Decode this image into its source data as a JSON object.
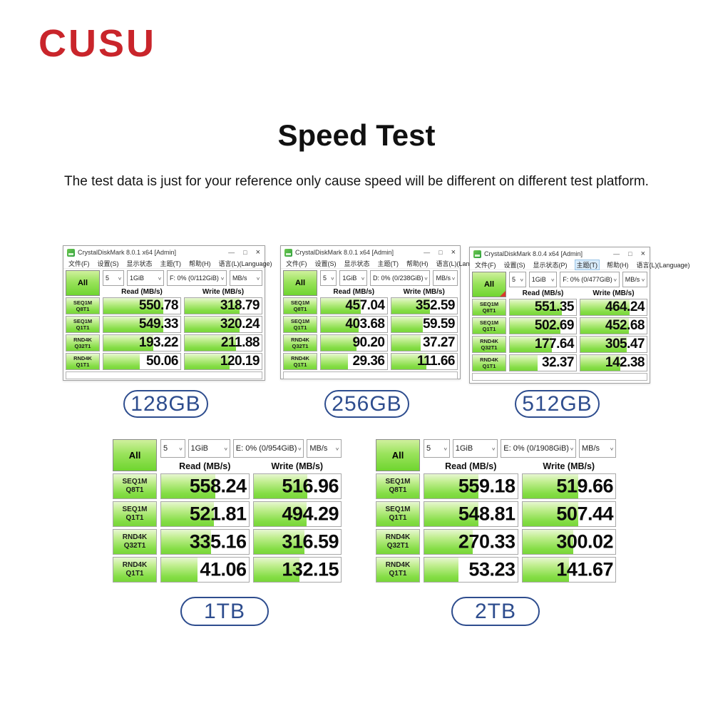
{
  "colors": {
    "brand_red": "#c9252b",
    "pill_blue": "#2e4d8e",
    "bar_green": "#79d63a",
    "bar_green_light": "#e7f7d2"
  },
  "header": {
    "brand": "CUSU",
    "title": "Speed Test",
    "subtitle": "The test data is just for your reference only cause speed will be different on different test platform."
  },
  "windows": [
    {
      "capacity_label": "128GB",
      "chrome": {
        "title": "CrystalDiskMark 8.0.1 x64 [Admin]",
        "minimize": "—",
        "maximize": "□",
        "close": "×"
      },
      "menu": [
        {
          "label": "文件(F)"
        },
        {
          "label": "设置(S)"
        },
        {
          "label": "显示状态"
        },
        {
          "label": "主题(T)"
        },
        {
          "label": "帮助(H)"
        },
        {
          "label": "语言(L)(Language)"
        }
      ],
      "all_label": "All",
      "controls": {
        "count": "5",
        "size": "1GiB",
        "target": "F: 0% (0/112GiB)",
        "unit": "MB/s"
      },
      "read_header": "Read (MB/s)",
      "write_header": "Write (MB/s)",
      "has_footer": true,
      "all_marker": false,
      "rows": [
        {
          "test": "SEQ1M",
          "queue": "Q8T1",
          "read": "550.78",
          "write": "318.79",
          "read_fill": 78,
          "write_fill": 71
        },
        {
          "test": "SEQ1M",
          "queue": "Q1T1",
          "read": "549.33",
          "write": "320.24",
          "read_fill": 78,
          "write_fill": 71
        },
        {
          "test": "RND4K",
          "queue": "Q32T1",
          "read": "193.22",
          "write": "211.88",
          "read_fill": 65,
          "write_fill": 67
        },
        {
          "test": "RND4K",
          "queue": "Q1T1",
          "read": "50.06",
          "write": "120.19",
          "read_fill": 47,
          "write_fill": 58
        }
      ]
    },
    {
      "capacity_label": "256GB",
      "chrome": {
        "title": "CrystalDiskMark 8.0.1 x64 [Admin]",
        "minimize": "—",
        "maximize": "□",
        "close": "×"
      },
      "menu": [
        {
          "label": "文件(F)"
        },
        {
          "label": "设置(S)"
        },
        {
          "label": "显示状态"
        },
        {
          "label": "主题(T)"
        },
        {
          "label": "帮助(H)"
        },
        {
          "label": "语言(L)(Language)"
        }
      ],
      "all_label": "All",
      "controls": {
        "count": "5",
        "size": "1GiB",
        "target": "D: 0% (0/238GiB)",
        "unit": "MB/s"
      },
      "read_header": "Read (MB/s)",
      "write_header": "Write (MB/s)",
      "has_footer": true,
      "all_marker": false,
      "rows": [
        {
          "test": "SEQ1M",
          "queue": "Q8T1",
          "read": "457.04",
          "write": "352.59",
          "read_fill": 60,
          "write_fill": 59
        },
        {
          "test": "SEQ1M",
          "queue": "Q1T1",
          "read": "403.68",
          "write": "59.59",
          "read_fill": 57,
          "write_fill": 48
        },
        {
          "test": "RND4K",
          "queue": "Q32T1",
          "read": "90.20",
          "write": "37.27",
          "read_fill": 54,
          "write_fill": 45
        },
        {
          "test": "RND4K",
          "queue": "Q1T1",
          "read": "29.36",
          "write": "111.66",
          "read_fill": 41,
          "write_fill": 54
        }
      ]
    },
    {
      "capacity_label": "512GB",
      "chrome": {
        "title": "CrystalDiskMark 8.0.4 x64 [Admin]",
        "minimize": "—",
        "maximize": "□",
        "close": "×"
      },
      "menu": [
        {
          "label": "文件(F)"
        },
        {
          "label": "设置(S)"
        },
        {
          "label": "显示状态(P)"
        },
        {
          "label": "主题(T)",
          "highlighted": true
        },
        {
          "label": "帮助(H)"
        },
        {
          "label": "语言(L)(Language)"
        }
      ],
      "all_label": "All",
      "controls": {
        "count": "5",
        "size": "1GiB",
        "target": "F: 0% (0/477GiB)",
        "unit": "MB/s"
      },
      "read_header": "Read (MB/s)",
      "write_header": "Write (MB/s)",
      "has_footer": true,
      "all_marker": true,
      "rows": [
        {
          "test": "SEQ1M",
          "queue": "Q8T1",
          "read": "551.35",
          "write": "464.24",
          "read_fill": 78,
          "write_fill": 74
        },
        {
          "test": "SEQ1M",
          "queue": "Q1T1",
          "read": "502.69",
          "write": "452.68",
          "read_fill": 76,
          "write_fill": 73
        },
        {
          "test": "RND4K",
          "queue": "Q32T1",
          "read": "177.64",
          "write": "305.47",
          "read_fill": 63,
          "write_fill": 70
        },
        {
          "test": "RND4K",
          "queue": "Q1T1",
          "read": "32.37",
          "write": "142.38",
          "read_fill": 42,
          "write_fill": 60
        }
      ]
    },
    {
      "capacity_label": "1TB",
      "chrome": null,
      "menu": null,
      "all_label": "All",
      "controls": {
        "count": "5",
        "size": "1GiB",
        "target": "E: 0% (0/954GiB)",
        "unit": "MB/s"
      },
      "read_header": "Read (MB/s)",
      "write_header": "Write (MB/s)",
      "has_footer": false,
      "all_marker": false,
      "rows": [
        {
          "test": "SEQ1M",
          "queue": "Q8T1",
          "read": "558.24",
          "write": "516.96",
          "read_fill": 62,
          "write_fill": 62
        },
        {
          "test": "SEQ1M",
          "queue": "Q1T1",
          "read": "521.81",
          "write": "494.29",
          "read_fill": 60,
          "write_fill": 61
        },
        {
          "test": "RND4K",
          "queue": "Q32T1",
          "read": "335.16",
          "write": "316.59",
          "read_fill": 57,
          "write_fill": 58
        },
        {
          "test": "RND4K",
          "queue": "Q1T1",
          "read": "41.06",
          "write": "132.15",
          "read_fill": 42,
          "write_fill": 53
        }
      ]
    },
    {
      "capacity_label": "2TB",
      "chrome": null,
      "menu": null,
      "all_label": "All",
      "controls": {
        "count": "5",
        "size": "1GiB",
        "target": "E: 0% (0/1908GiB)",
        "unit": "MB/s"
      },
      "read_header": "Read (MB/s)",
      "write_header": "Write (MB/s)",
      "has_footer": false,
      "all_marker": false,
      "rows": [
        {
          "test": "SEQ1M",
          "queue": "Q8T1",
          "read": "559.18",
          "write": "519.66",
          "read_fill": 58,
          "write_fill": 60
        },
        {
          "test": "SEQ1M",
          "queue": "Q1T1",
          "read": "548.81",
          "write": "507.44",
          "read_fill": 58,
          "write_fill": 60
        },
        {
          "test": "RND4K",
          "queue": "Q32T1",
          "read": "270.33",
          "write": "300.02",
          "read_fill": 52,
          "write_fill": 55
        },
        {
          "test": "RND4K",
          "queue": "Q1T1",
          "read": "53.23",
          "write": "141.67",
          "read_fill": 37,
          "write_fill": 50
        }
      ]
    }
  ]
}
